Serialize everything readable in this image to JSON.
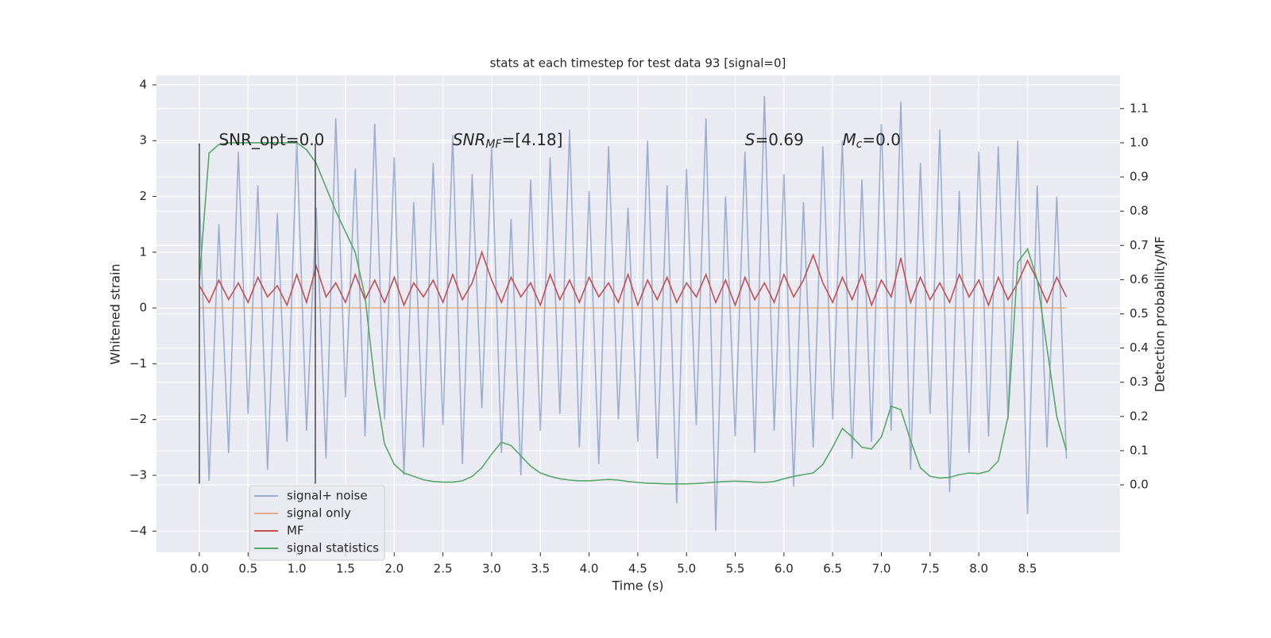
{
  "chart_data": {
    "type": "line",
    "title": "stats at each timestep for test data 93 [signal=0]",
    "x_label": "Time (s)",
    "y_label": "Whitened strain",
    "y2_label": "Detection probability/MF",
    "xlim": [
      -0.44,
      9.45
    ],
    "ylim": [
      -4.38,
      4.17
    ],
    "y2lim": [
      -0.197,
      1.197
    ],
    "grid": true,
    "legend": "lower left",
    "xticks": [
      {
        "value": 0,
        "label": "0.0"
      },
      {
        "value": 0.5,
        "label": "0.5"
      },
      {
        "value": 1,
        "label": "1.0"
      },
      {
        "value": 1.5,
        "label": "1.5"
      },
      {
        "value": 2,
        "label": "2.0"
      },
      {
        "value": 2.5,
        "label": "2.5"
      },
      {
        "value": 3,
        "label": "3.0"
      },
      {
        "value": 3.5,
        "label": "3.5"
      },
      {
        "value": 4,
        "label": "4.0"
      },
      {
        "value": 4.5,
        "label": "4.5"
      },
      {
        "value": 5,
        "label": "5.0"
      },
      {
        "value": 5.5,
        "label": "5.5"
      },
      {
        "value": 6,
        "label": "6.0"
      },
      {
        "value": 6.5,
        "label": "6.5"
      },
      {
        "value": 7,
        "label": "7.0"
      },
      {
        "value": 7.5,
        "label": "7.5"
      },
      {
        "value": 8,
        "label": "8.0"
      },
      {
        "value": 8.5,
        "label": "8.5"
      }
    ],
    "yticks": [
      {
        "value": -4,
        "label": "−4"
      },
      {
        "value": -3,
        "label": "−3"
      },
      {
        "value": -2,
        "label": "−2"
      },
      {
        "value": -1,
        "label": "−1"
      },
      0,
      1,
      2,
      3,
      4
    ],
    "y2ticks": [
      {
        "value": 0,
        "label": "0.0"
      },
      {
        "value": 0.1,
        "label": "0.1"
      },
      {
        "value": 0.2,
        "label": "0.2"
      },
      {
        "value": 0.3,
        "label": "0.3"
      },
      {
        "value": 0.4,
        "label": "0.4"
      },
      {
        "value": 0.5,
        "label": "0.5"
      },
      {
        "value": 0.6,
        "label": "0.6"
      },
      {
        "value": 0.7,
        "label": "0.7"
      },
      {
        "value": 0.8,
        "label": "0.8"
      },
      {
        "value": 0.9,
        "label": "0.9"
      },
      {
        "value": 1,
        "label": "1.0"
      },
      {
        "value": 1.1,
        "label": "1.1"
      }
    ],
    "x": [
      0.0,
      0.1,
      0.2,
      0.3,
      0.4,
      0.5,
      0.6,
      0.7,
      0.8,
      0.9,
      1.0,
      1.1,
      1.2,
      1.3,
      1.4,
      1.5,
      1.6,
      1.7,
      1.8,
      1.9,
      2.0,
      2.1,
      2.2,
      2.3,
      2.4,
      2.5,
      2.6,
      2.7,
      2.8,
      2.9,
      3.0,
      3.1,
      3.2,
      3.3,
      3.4,
      3.5,
      3.6,
      3.7,
      3.8,
      3.9,
      4.0,
      4.1,
      4.2,
      4.3,
      4.4,
      4.5,
      4.6,
      4.7,
      4.8,
      4.9,
      5.0,
      5.1,
      5.2,
      5.3,
      5.4,
      5.5,
      5.6,
      5.7,
      5.8,
      5.9,
      6.0,
      6.1,
      6.2,
      6.3,
      6.4,
      6.5,
      6.6,
      6.7,
      6.8,
      6.9,
      7.0,
      7.1,
      7.2,
      7.3,
      7.4,
      7.5,
      7.6,
      7.7,
      7.8,
      7.9,
      8.0,
      8.1,
      8.2,
      8.3,
      8.4,
      8.5,
      8.6,
      8.7,
      8.8,
      8.9
    ],
    "series": [
      {
        "name": "signal+ noise",
        "color": "#4c72b0",
        "alpha": 0.5,
        "values": [
          2.0,
          -3.1,
          1.5,
          -2.6,
          2.8,
          -1.9,
          2.2,
          -2.9,
          1.7,
          -2.4,
          3.0,
          -2.2,
          1.8,
          -2.7,
          3.4,
          -1.6,
          2.5,
          -2.3,
          3.3,
          -2.0,
          2.7,
          -3.0,
          1.9,
          -2.5,
          2.6,
          -2.1,
          3.1,
          -2.8,
          2.4,
          -1.8,
          2.9,
          -2.6,
          1.6,
          -3.0,
          2.3,
          -2.2,
          2.7,
          -1.9,
          3.2,
          -2.5,
          2.1,
          -2.8,
          2.9,
          -2.0,
          1.8,
          -2.4,
          3.0,
          -2.7,
          2.2,
          -3.5,
          2.5,
          -2.1,
          3.4,
          -4.0,
          2.0,
          -2.3,
          2.8,
          -2.6,
          3.8,
          -2.2,
          2.4,
          -3.2,
          1.9,
          -2.5,
          2.9,
          -2.0,
          3.0,
          -2.7,
          2.3,
          -2.4,
          3.3,
          -2.2,
          3.7,
          -2.9,
          2.6,
          -1.9,
          3.2,
          -3.3,
          2.1,
          -2.6,
          2.8,
          -2.3,
          2.9,
          -2.0,
          3.0,
          -3.7,
          2.2,
          -2.5,
          2.0,
          -2.7
        ]
      },
      {
        "name": "signal only",
        "color": "#dd8452",
        "alpha": 0.6,
        "values": [
          0,
          0,
          0,
          0,
          0,
          0,
          0,
          0,
          0,
          0,
          0,
          0,
          0,
          0,
          0,
          0,
          0,
          0,
          0,
          0,
          0,
          0,
          0,
          0,
          0,
          0,
          0,
          0,
          0,
          0,
          0,
          0,
          0,
          0,
          0,
          0,
          0,
          0,
          0,
          0,
          0,
          0,
          0,
          0,
          0,
          0,
          0,
          0,
          0,
          0,
          0,
          0,
          0,
          0,
          0,
          0,
          0,
          0,
          0,
          0,
          0,
          0,
          0,
          0,
          0,
          0,
          0,
          0,
          0,
          0,
          0,
          0,
          0,
          0,
          0,
          0,
          0,
          0,
          0,
          0,
          0,
          0,
          0,
          0,
          0,
          0,
          0,
          0,
          0,
          0
        ]
      },
      {
        "name": "MF",
        "color": "#c44e52",
        "alpha": 1,
        "values": [
          0.4,
          0.1,
          0.5,
          0.15,
          0.45,
          0.1,
          0.55,
          0.2,
          0.4,
          0.05,
          0.6,
          0.1,
          0.75,
          0.2,
          0.45,
          0.1,
          0.6,
          0.15,
          0.5,
          0.1,
          0.55,
          0.05,
          0.45,
          0.2,
          0.5,
          0.1,
          0.6,
          0.15,
          0.45,
          1.0,
          0.5,
          0.1,
          0.55,
          0.2,
          0.45,
          0.05,
          0.6,
          0.15,
          0.5,
          0.1,
          0.55,
          0.2,
          0.45,
          0.1,
          0.6,
          0.05,
          0.5,
          0.15,
          0.55,
          0.1,
          0.45,
          0.2,
          0.6,
          0.1,
          0.5,
          0.05,
          0.55,
          0.15,
          0.45,
          0.1,
          0.6,
          0.2,
          0.5,
          0.95,
          0.45,
          0.1,
          0.55,
          0.15,
          0.6,
          0.05,
          0.5,
          0.2,
          0.9,
          0.1,
          0.55,
          0.15,
          0.45,
          0.1,
          0.6,
          0.2,
          0.5,
          0.05,
          0.55,
          0.15,
          0.45,
          0.85,
          0.5,
          0.1,
          0.55,
          0.2
        ]
      },
      {
        "name": "signal statistics",
        "color": "#55a868",
        "alpha": 1,
        "axis": "y2",
        "values": [
          0.6,
          0.97,
          0.995,
          1.0,
          1.0,
          1.0,
          1.0,
          1.0,
          1.0,
          1.0,
          1.0,
          0.98,
          0.94,
          0.87,
          0.8,
          0.74,
          0.68,
          0.55,
          0.3,
          0.12,
          0.06,
          0.035,
          0.025,
          0.015,
          0.01,
          0.008,
          0.008,
          0.012,
          0.025,
          0.05,
          0.09,
          0.125,
          0.115,
          0.085,
          0.055,
          0.035,
          0.025,
          0.018,
          0.014,
          0.012,
          0.012,
          0.014,
          0.016,
          0.014,
          0.01,
          0.007,
          0.005,
          0.004,
          0.003,
          0.003,
          0.003,
          0.004,
          0.006,
          0.008,
          0.01,
          0.011,
          0.01,
          0.008,
          0.007,
          0.01,
          0.018,
          0.025,
          0.03,
          0.035,
          0.06,
          0.11,
          0.165,
          0.14,
          0.11,
          0.105,
          0.14,
          0.23,
          0.22,
          0.13,
          0.05,
          0.025,
          0.02,
          0.022,
          0.03,
          0.035,
          0.033,
          0.04,
          0.07,
          0.2,
          0.65,
          0.69,
          0.6,
          0.4,
          0.2,
          0.1
        ]
      }
    ],
    "markers": {
      "x": [
        0.0,
        1.19
      ],
      "ymin": -3.15,
      "ymax": 2.95,
      "color": "#444444"
    },
    "annotations": [
      {
        "x": 0.2,
        "y": 3.0,
        "parts": [
          {
            "text": "SNR_opt=0.0"
          }
        ]
      },
      {
        "x": 2.6,
        "y": 3.0,
        "parts": [
          {
            "text": "SNR",
            "italic": true
          },
          {
            "text": "MF",
            "italic": true,
            "sub": true
          },
          {
            "text": "=[4.18]"
          }
        ]
      },
      {
        "x": 5.6,
        "y": 3.0,
        "parts": [
          {
            "text": "S",
            "italic": true
          },
          {
            "text": "=0.69"
          }
        ]
      },
      {
        "x": 6.6,
        "y": 3.0,
        "parts": [
          {
            "text": "M",
            "italic": true
          },
          {
            "text": "c",
            "italic": true,
            "sub": true
          },
          {
            "text": "=0.0"
          }
        ]
      }
    ]
  }
}
